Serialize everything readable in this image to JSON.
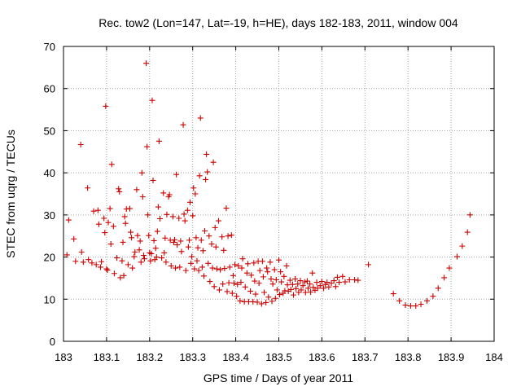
{
  "chart_data": {
    "type": "scatter",
    "title": "Rec. tow2 (Lon=147, Lat=-19, h=HE), days 182-183, 2011, window 004",
    "xlabel": "GPS time / Days of year 2011",
    "ylabel": "STEC from uqrg / TECUs",
    "xlim": [
      183,
      184
    ],
    "ylim": [
      0,
      70
    ],
    "xticks": [
      183,
      183.1,
      183.2,
      183.3,
      183.4,
      183.5,
      183.6,
      183.7,
      183.8,
      183.9,
      184
    ],
    "xtick_labels": [
      "183",
      "183.1",
      "183.2",
      "183.3",
      "183.4",
      "183.5",
      "183.6",
      "183.7",
      "183.8",
      "183.9",
      "184"
    ],
    "yticks": [
      0,
      10,
      20,
      30,
      40,
      50,
      60,
      70
    ],
    "ytick_labels": [
      "0",
      "10",
      "20",
      "30",
      "40",
      "50",
      "60",
      "70"
    ],
    "grid": true,
    "marker": "+",
    "color": "#cc0000",
    "series": [
      {
        "name": "STEC",
        "points": [
          [
            183.008,
            20.5
          ],
          [
            183.012,
            28.8
          ],
          [
            183.024,
            24.3
          ],
          [
            183.028,
            19.0
          ],
          [
            183.04,
            46.7
          ],
          [
            183.042,
            21.2
          ],
          [
            183.046,
            18.8
          ],
          [
            183.056,
            36.4
          ],
          [
            183.058,
            19.4
          ],
          [
            183.066,
            18.6
          ],
          [
            183.07,
            30.9
          ],
          [
            183.076,
            18.2
          ],
          [
            183.08,
            31.1
          ],
          [
            183.082,
            27.8
          ],
          [
            183.086,
            17.6
          ],
          [
            183.088,
            18.9
          ],
          [
            183.094,
            29.2
          ],
          [
            183.096,
            25.8
          ],
          [
            183.098,
            55.8
          ],
          [
            183.1,
            17.2
          ],
          [
            183.102,
            16.9
          ],
          [
            183.104,
            28.2
          ],
          [
            183.108,
            31.5
          ],
          [
            183.11,
            23.1
          ],
          [
            183.112,
            42.0
          ],
          [
            183.116,
            27.3
          ],
          [
            183.118,
            16.1
          ],
          [
            183.124,
            19.8
          ],
          [
            183.128,
            36.2
          ],
          [
            183.13,
            35.5
          ],
          [
            183.132,
            15.1
          ],
          [
            183.136,
            19.1
          ],
          [
            183.138,
            23.5
          ],
          [
            183.14,
            15.6
          ],
          [
            183.142,
            29.6
          ],
          [
            183.144,
            28.0
          ],
          [
            183.146,
            31.4
          ],
          [
            183.15,
            18.2
          ],
          [
            183.154,
            31.5
          ],
          [
            183.156,
            25.9
          ],
          [
            183.158,
            24.6
          ],
          [
            183.16,
            17.4
          ],
          [
            183.164,
            20.1
          ],
          [
            183.166,
            21.2
          ],
          [
            183.17,
            36.0
          ],
          [
            183.172,
            25.1
          ],
          [
            183.176,
            21.7
          ],
          [
            183.178,
            23.8
          ],
          [
            183.18,
            18.8
          ],
          [
            183.182,
            40.0
          ],
          [
            183.184,
            34.3
          ],
          [
            183.186,
            20.4
          ],
          [
            183.188,
            19.6
          ],
          [
            183.192,
            66.0
          ],
          [
            183.194,
            46.2
          ],
          [
            183.196,
            30.0
          ],
          [
            183.198,
            25.1
          ],
          [
            183.2,
            21.0
          ],
          [
            183.202,
            19.1
          ],
          [
            183.204,
            20.8
          ],
          [
            183.206,
            57.2
          ],
          [
            183.208,
            38.2
          ],
          [
            183.21,
            23.9
          ],
          [
            183.212,
            19.4
          ],
          [
            183.214,
            22.1
          ],
          [
            183.216,
            20.0
          ],
          [
            183.218,
            26.1
          ],
          [
            183.22,
            31.9
          ],
          [
            183.222,
            47.5
          ],
          [
            183.224,
            29.1
          ],
          [
            183.228,
            19.8
          ],
          [
            183.232,
            35.2
          ],
          [
            183.234,
            21.0
          ],
          [
            183.236,
            24.5
          ],
          [
            183.238,
            18.8
          ],
          [
            183.24,
            30.1
          ],
          [
            183.244,
            34.3
          ],
          [
            183.246,
            34.8
          ],
          [
            183.248,
            24.0
          ],
          [
            183.25,
            17.9
          ],
          [
            183.254,
            29.6
          ],
          [
            183.256,
            23.5
          ],
          [
            183.258,
            24.1
          ],
          [
            183.26,
            17.4
          ],
          [
            183.262,
            39.6
          ],
          [
            183.264,
            22.9
          ],
          [
            183.268,
            29.2
          ],
          [
            183.27,
            17.6
          ],
          [
            183.272,
            23.8
          ],
          [
            183.274,
            21.3
          ],
          [
            183.278,
            51.4
          ],
          [
            183.28,
            30.2
          ],
          [
            183.282,
            28.6
          ],
          [
            183.284,
            16.8
          ],
          [
            183.288,
            31.1
          ],
          [
            183.29,
            22.4
          ],
          [
            183.292,
            24.0
          ],
          [
            183.294,
            33.0
          ],
          [
            183.296,
            18.5
          ],
          [
            183.298,
            20.1
          ],
          [
            183.3,
            29.8
          ],
          [
            183.302,
            36.4
          ],
          [
            183.304,
            17.2
          ],
          [
            183.306,
            35.0
          ],
          [
            183.308,
            24.6
          ],
          [
            183.31,
            19.1
          ],
          [
            183.312,
            22.2
          ],
          [
            183.314,
            16.8
          ],
          [
            183.316,
            39.3
          ],
          [
            183.318,
            53.0
          ],
          [
            183.32,
            24.0
          ],
          [
            183.322,
            17.6
          ],
          [
            183.324,
            21.5
          ],
          [
            183.326,
            15.5
          ],
          [
            183.328,
            26.2
          ],
          [
            183.33,
            38.4
          ],
          [
            183.332,
            44.4
          ],
          [
            183.334,
            40.2
          ],
          [
            183.336,
            18.5
          ],
          [
            183.338,
            25.0
          ],
          [
            183.34,
            14.2
          ],
          [
            183.344,
            23.1
          ],
          [
            183.346,
            17.4
          ],
          [
            183.348,
            42.5
          ],
          [
            183.35,
            13.0
          ],
          [
            183.352,
            27.0
          ],
          [
            183.354,
            22.4
          ],
          [
            183.356,
            17.2
          ],
          [
            183.36,
            28.6
          ],
          [
            183.362,
            12.2
          ],
          [
            183.364,
            17.0
          ],
          [
            183.368,
            24.8
          ],
          [
            183.37,
            13.6
          ],
          [
            183.372,
            21.6
          ],
          [
            183.374,
            17.3
          ],
          [
            183.378,
            31.6
          ],
          [
            183.38,
            11.8
          ],
          [
            183.382,
            25.0
          ],
          [
            183.384,
            13.9
          ],
          [
            183.386,
            17.6
          ],
          [
            183.39,
            25.2
          ],
          [
            183.392,
            11.4
          ],
          [
            183.394,
            15.6
          ],
          [
            183.396,
            13.8
          ],
          [
            183.398,
            18.2
          ],
          [
            183.402,
            10.7
          ],
          [
            183.404,
            13.5
          ],
          [
            183.406,
            17.9
          ],
          [
            183.41,
            9.6
          ],
          [
            183.412,
            14.0
          ],
          [
            183.414,
            17.4
          ],
          [
            183.416,
            19.6
          ],
          [
            183.42,
            9.4
          ],
          [
            183.422,
            12.9
          ],
          [
            183.426,
            16.2
          ],
          [
            183.428,
            18.4
          ],
          [
            183.43,
            9.4
          ],
          [
            183.434,
            11.9
          ],
          [
            183.436,
            15.7
          ],
          [
            183.44,
            9.4
          ],
          [
            183.442,
            18.6
          ],
          [
            183.444,
            14.3
          ],
          [
            183.446,
            11.2
          ],
          [
            183.45,
            9.3
          ],
          [
            183.452,
            19.0
          ],
          [
            183.454,
            13.8
          ],
          [
            183.456,
            16.8
          ],
          [
            183.46,
            8.9
          ],
          [
            183.462,
            19.0
          ],
          [
            183.464,
            15.3
          ],
          [
            183.466,
            11.6
          ],
          [
            183.47,
            9.2
          ],
          [
            183.472,
            17.4
          ],
          [
            183.474,
            16.5
          ],
          [
            183.476,
            10.5
          ],
          [
            183.48,
            18.8
          ],
          [
            183.482,
            14.8
          ],
          [
            183.484,
            9.5
          ],
          [
            183.486,
            13.6
          ],
          [
            183.49,
            17.0
          ],
          [
            183.492,
            10.2
          ],
          [
            183.494,
            14.6
          ],
          [
            183.496,
            12.2
          ],
          [
            183.5,
            19.3
          ],
          [
            183.502,
            11.1
          ],
          [
            183.504,
            16.5
          ],
          [
            183.506,
            14.1
          ],
          [
            183.51,
            11.4
          ],
          [
            183.512,
            15.4
          ],
          [
            183.514,
            12.0
          ],
          [
            183.518,
            17.9
          ],
          [
            183.52,
            13.4
          ],
          [
            183.522,
            11.9
          ],
          [
            183.526,
            14.5
          ],
          [
            183.528,
            12.3
          ],
          [
            183.532,
            13.5
          ],
          [
            183.534,
            11.0
          ],
          [
            183.538,
            14.8
          ],
          [
            183.54,
            12.5
          ],
          [
            183.544,
            13.6
          ],
          [
            183.546,
            11.6
          ],
          [
            183.55,
            14.4
          ],
          [
            183.552,
            12.2
          ],
          [
            183.556,
            13.2
          ],
          [
            183.56,
            14.1
          ],
          [
            183.562,
            11.6
          ],
          [
            183.566,
            14.3
          ],
          [
            183.568,
            12.6
          ],
          [
            183.572,
            13.6
          ],
          [
            183.574,
            11.7
          ],
          [
            183.578,
            16.2
          ],
          [
            183.58,
            12.8
          ],
          [
            183.584,
            12.1
          ],
          [
            183.588,
            14.0
          ],
          [
            183.59,
            12.6
          ],
          [
            183.596,
            13.2
          ],
          [
            183.6,
            14.2
          ],
          [
            183.604,
            12.6
          ],
          [
            183.608,
            13.5
          ],
          [
            183.612,
            14.0
          ],
          [
            183.616,
            12.9
          ],
          [
            183.622,
            13.8
          ],
          [
            183.628,
            14.4
          ],
          [
            183.632,
            13.0
          ],
          [
            183.636,
            15.2
          ],
          [
            183.64,
            14.0
          ],
          [
            183.648,
            15.4
          ],
          [
            183.654,
            14.1
          ],
          [
            183.664,
            14.6
          ],
          [
            183.676,
            14.6
          ],
          [
            183.684,
            14.5
          ],
          [
            183.708,
            18.2
          ],
          [
            183.766,
            11.3
          ],
          [
            183.78,
            9.6
          ],
          [
            183.794,
            8.6
          ],
          [
            183.806,
            8.4
          ],
          [
            183.818,
            8.4
          ],
          [
            183.83,
            8.8
          ],
          [
            183.844,
            9.6
          ],
          [
            183.858,
            10.7
          ],
          [
            183.87,
            12.6
          ],
          [
            183.884,
            15.1
          ],
          [
            183.896,
            17.4
          ],
          [
            183.914,
            20.1
          ],
          [
            183.926,
            22.6
          ],
          [
            183.938,
            25.9
          ],
          [
            183.944,
            30.0
          ]
        ]
      }
    ]
  }
}
